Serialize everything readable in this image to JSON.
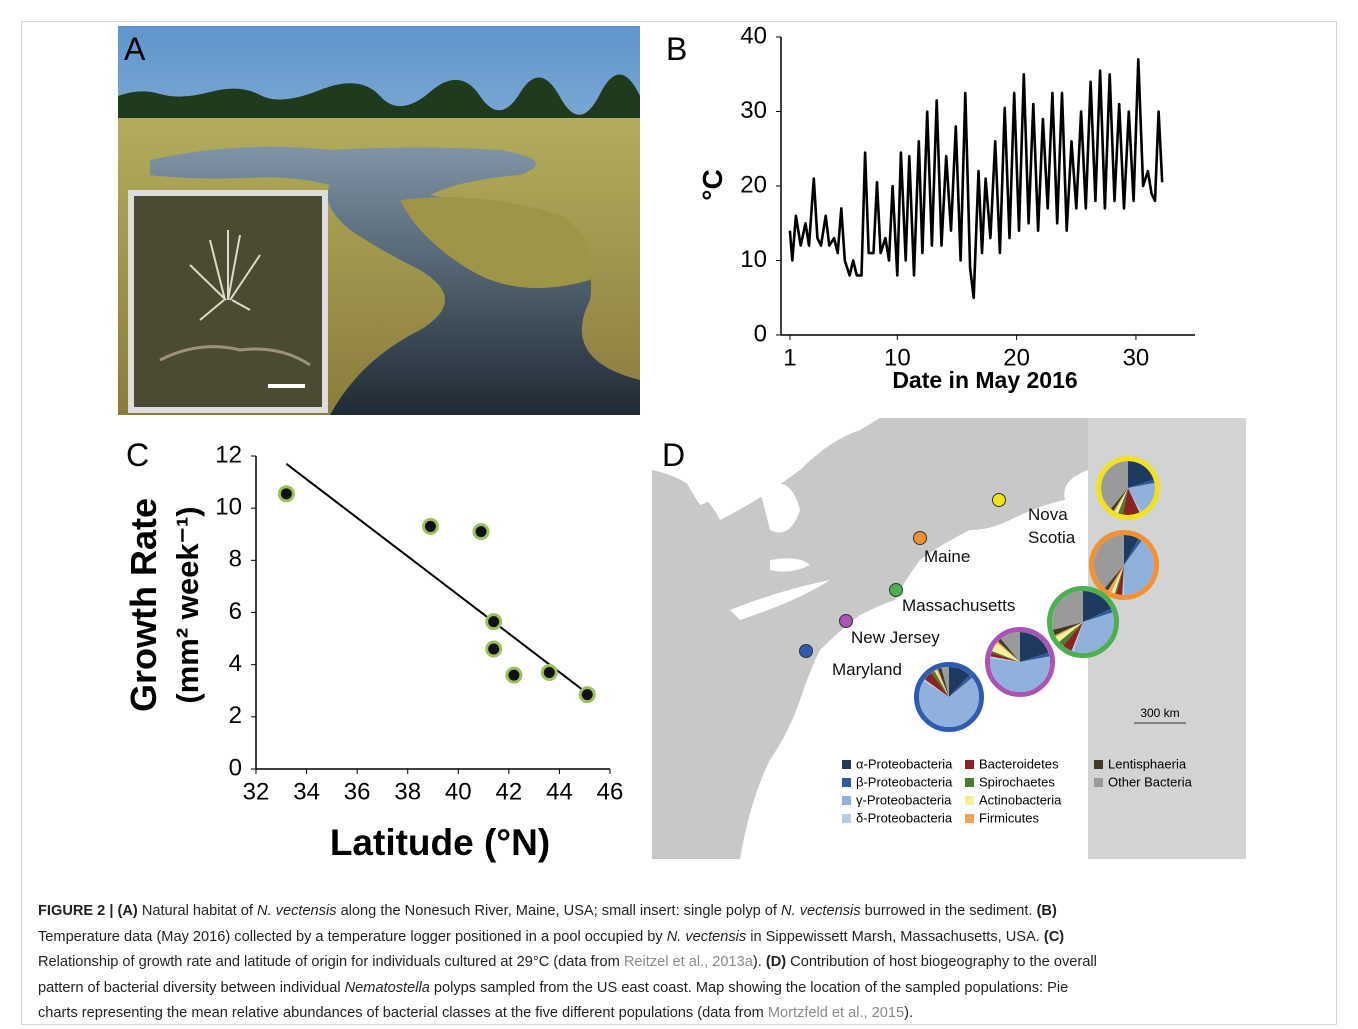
{
  "photo": {
    "panel_label": "A"
  },
  "chart_data": [
    {
      "type": "line",
      "panel_label": "B",
      "x_label": "Date in May 2016",
      "y_label": "°C",
      "color": "#000000",
      "xlim": [
        0.25,
        34.95
      ],
      "ylim": [
        0,
        40
      ],
      "xticks": [
        1,
        10,
        20,
        30
      ],
      "yticks": [
        0,
        10,
        20,
        30,
        40
      ],
      "x": [
        1.0,
        1.2,
        1.5,
        1.9,
        2.3,
        2.6,
        3.0,
        3.3,
        3.6,
        4.0,
        4.3,
        4.7,
        5.0,
        5.3,
        5.6,
        6.0,
        6.3,
        6.6,
        7.0,
        7.3,
        7.6,
        8.0,
        8.3,
        8.6,
        9.0,
        9.3,
        9.6,
        10.0,
        10.3,
        10.7,
        11.0,
        11.4,
        11.8,
        12.1,
        12.5,
        12.9,
        13.3,
        13.7,
        14.1,
        14.5,
        14.9,
        15.3,
        15.7,
        16.1,
        16.4,
        16.8,
        17.1,
        17.4,
        17.8,
        18.2,
        18.6,
        19.0,
        19.4,
        19.8,
        20.2,
        20.6,
        21.0,
        21.4,
        21.8,
        22.2,
        22.6,
        23.0,
        23.4,
        23.8,
        24.2,
        24.6,
        25.0,
        25.4,
        25.8,
        26.2,
        26.6,
        27.0,
        27.4,
        27.8,
        28.2,
        28.6,
        29.0,
        29.4,
        29.8,
        30.2,
        30.6,
        31.0,
        31.3,
        31.6,
        31.9,
        32.2
      ],
      "values": [
        14,
        10,
        16,
        12,
        15,
        12,
        21,
        13,
        12,
        16,
        12,
        13,
        11,
        17,
        10,
        8,
        10,
        8,
        8,
        24.5,
        11,
        11,
        20.5,
        11,
        13,
        10,
        20,
        8,
        24.5,
        10,
        24,
        8,
        26,
        11,
        30,
        12,
        31.5,
        12,
        24,
        14,
        28,
        10,
        32.5,
        9,
        5,
        22,
        11,
        21,
        13,
        26,
        11,
        30.5,
        13,
        32.5,
        14,
        35,
        15,
        31,
        14,
        29,
        17,
        32.5,
        15,
        32.5,
        14,
        26,
        17,
        30,
        17,
        34,
        18,
        35.5,
        17,
        35,
        18,
        31,
        17,
        30,
        18,
        37,
        20,
        22,
        19,
        18,
        30,
        20.5
      ]
    },
    {
      "type": "scatter",
      "panel_label": "C",
      "x_label": "Latitude (°N)",
      "y_label": [
        "Growth Rate",
        "(mm² week⁻¹)"
      ],
      "color": "#111111",
      "edge_color": "#9cc05a",
      "xlim": [
        32,
        46
      ],
      "ylim": [
        0,
        12
      ],
      "xticks": [
        32,
        34,
        36,
        38,
        40,
        42,
        44,
        46
      ],
      "yticks": [
        0,
        2,
        4,
        6,
        8,
        10,
        12
      ],
      "x": [
        33.2,
        38.9,
        40.9,
        41.4,
        41.4,
        42.2,
        43.6,
        45.1
      ],
      "values": [
        10.55,
        9.3,
        9.1,
        5.65,
        4.6,
        3.6,
        3.7,
        2.85
      ],
      "fit": {
        "x": [
          33.2,
          45.1
        ],
        "y": [
          11.7,
          2.9
        ]
      }
    },
    {
      "type": "pie",
      "panel_label": "D",
      "scale_label": "300 km",
      "categories": [
        "α-Proteobacteria",
        "β-Proteobacteria",
        "γ-Proteobacteria",
        "δ-Proteobacteria",
        "Bacteroidetes",
        "Spirochaetes",
        "Actinobacteria",
        "Firmicutes",
        "Lentisphaeria",
        "Other Bacteria"
      ],
      "colors": [
        "#1f3a5f",
        "#2f5b9b",
        "#8fb1dc",
        "#b8cde6",
        "#8b2323",
        "#4f7a32",
        "#f5f09a",
        "#f4a056",
        "#3d3a26",
        "#9a9a9a"
      ],
      "sites": [
        {
          "name": "Nova Scotia",
          "color": "#f2e21e",
          "values": [
            20,
            2,
            20,
            1,
            10,
            3,
            2,
            1,
            2,
            39
          ]
        },
        {
          "name": "Maine",
          "color": "#f39034",
          "values": [
            8,
            2,
            40,
            1,
            3,
            1,
            2,
            2,
            2,
            39
          ]
        },
        {
          "name": "Massachusetts",
          "color": "#4caf50",
          "values": [
            18,
            2,
            35,
            1,
            5,
            3,
            3,
            1,
            3,
            29
          ]
        },
        {
          "name": "New Jersey",
          "color": "#a855b5",
          "values": [
            20,
            2,
            55,
            1,
            2,
            1,
            5,
            1,
            2,
            11
          ]
        },
        {
          "name": "Maryland",
          "color": "#2f5bb0",
          "values": [
            12,
            2,
            70,
            1,
            5,
            2,
            1,
            1,
            2,
            4
          ]
        }
      ]
    }
  ],
  "caption": [
    [
      "FIGURE 2 | (A)",
      " Natural habitat of ",
      "N. vectensis",
      " along the Nonesuch River, Maine, USA; small insert: single polyp of ",
      "N. vectensis",
      " burrowed in the sediment. ",
      "(B)"
    ],
    [
      "Temperature data (May 2016) collected by a temperature logger positioned in a pool occupied by ",
      "N. vectensis",
      " in Sippewissett Marsh, Massachusetts, USA. ",
      "(C)"
    ],
    [
      "Relationship of growth rate and latitude of origin for individuals cultured at 29°C (data from ",
      "Reitzel et al., 2013a",
      "). ",
      "(D)",
      " Contribution of host biogeography to the overall"
    ],
    [
      "pattern of bacterial diversity between individual ",
      "Nematostella",
      " polyps sampled from the US east coast. Map showing the location of the sampled populations: Pie"
    ],
    [
      "charts representing the mean relative abundances of bacterial classes at the five different populations (data from ",
      "Mortzfeld et al., 2015",
      ")."
    ]
  ]
}
